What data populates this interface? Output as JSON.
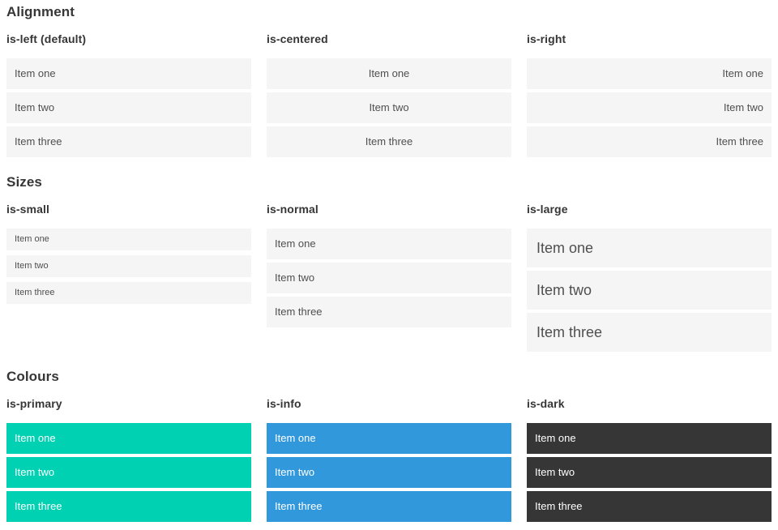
{
  "theme": {
    "primary": "#00d1b2",
    "info": "#3298dc",
    "dark": "#363636",
    "item-bg": "#f5f5f5",
    "item-text": "#4f4f4f"
  },
  "sections": [
    {
      "title": "Alignment",
      "variants": [
        {
          "label": "is-left (default)",
          "items": [
            "Item one",
            "Item two",
            "Item three"
          ]
        },
        {
          "label": "is-centered",
          "items": [
            "Item one",
            "Item two",
            "Item three"
          ]
        },
        {
          "label": "is-right",
          "items": [
            "Item one",
            "Item two",
            "Item three"
          ]
        }
      ]
    },
    {
      "title": "Sizes",
      "variants": [
        {
          "label": "is-small",
          "items": [
            "Item one",
            "Item two",
            "Item three"
          ]
        },
        {
          "label": "is-normal",
          "items": [
            "Item one",
            "Item two",
            "Item three"
          ]
        },
        {
          "label": "is-large",
          "items": [
            "Item one",
            "Item two",
            "Item three"
          ]
        }
      ]
    },
    {
      "title": "Colours",
      "variants": [
        {
          "label": "is-primary",
          "items": [
            "Item one",
            "Item two",
            "Item three"
          ]
        },
        {
          "label": "is-info",
          "items": [
            "Item one",
            "Item two",
            "Item three"
          ]
        },
        {
          "label": "is-dark",
          "items": [
            "Item one",
            "Item two",
            "Item three"
          ]
        }
      ]
    }
  ]
}
